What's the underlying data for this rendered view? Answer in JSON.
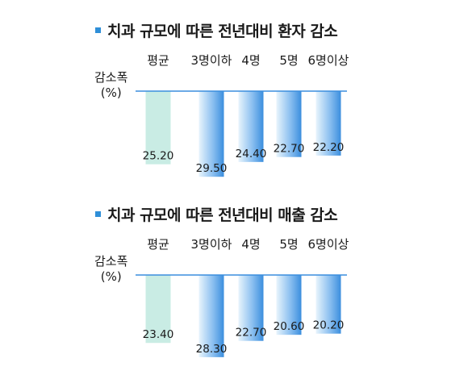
{
  "chart_data": [
    {
      "type": "bar",
      "title": "치과 규모에 따른 전년대비 환자 감소",
      "ylabel": [
        "감소폭",
        "(%)"
      ],
      "categories": [
        "평균",
        "3명이하",
        "4명",
        "5명",
        "6명이상"
      ],
      "values": [
        25.2,
        29.5,
        24.4,
        22.7,
        22.2
      ],
      "value_labels": [
        "25.20",
        "29.50",
        "24.40",
        "22.70",
        "22.20"
      ],
      "ylim": [
        0,
        30
      ],
      "orientation": "vertical-downward",
      "grid": false,
      "colors": {
        "average": "#c9ece4",
        "others": "#3b8ede",
        "highlight": "#e8f4fc",
        "axis": "#3b8ede",
        "marker": "#2f8fd8"
      }
    },
    {
      "type": "bar",
      "title": "치과 규모에 따른 전년대비 매출 감소",
      "ylabel": [
        "감소폭",
        "(%)"
      ],
      "categories": [
        "평균",
        "3명이하",
        "4명",
        "5명",
        "6명이상"
      ],
      "values": [
        23.4,
        28.3,
        22.7,
        20.6,
        20.2
      ],
      "value_labels": [
        "23.40",
        "28.30",
        "22.70",
        "20.60",
        "20.20"
      ],
      "ylim": [
        0,
        30
      ],
      "orientation": "vertical-downward",
      "grid": false,
      "colors": {
        "average": "#c9ece4",
        "others": "#3b8ede",
        "highlight": "#e8f4fc",
        "axis": "#3b8ede",
        "marker": "#2f8fd8"
      }
    }
  ]
}
